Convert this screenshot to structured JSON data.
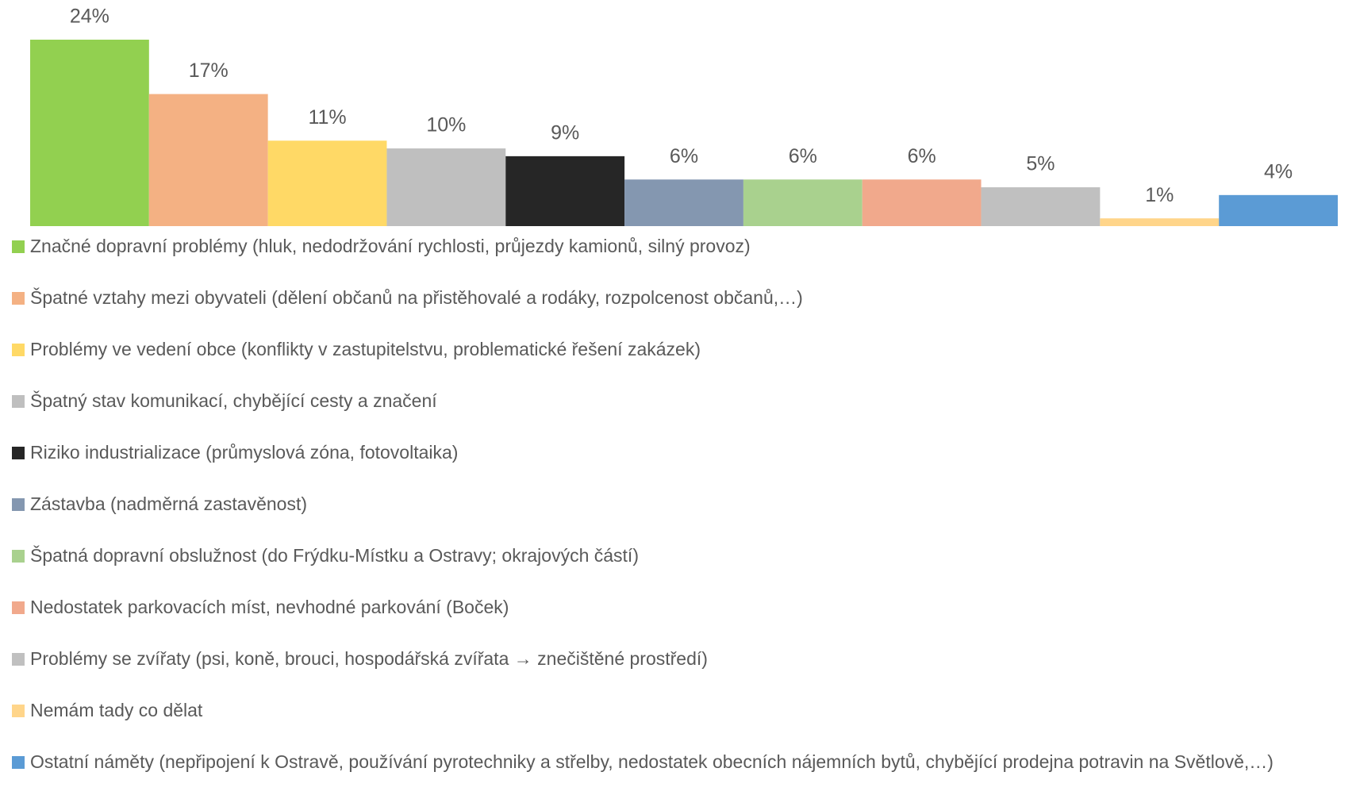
{
  "chart_data": {
    "type": "bar",
    "series": [
      {
        "name": "Značné dopravní problémy (hluk, nedodržování rychlosti, průjezdy kamionů, silný provoz)",
        "color": "#92d050",
        "values": [
          24
        ],
        "value_labels": [
          "24%"
        ]
      },
      {
        "name": "Špatné vztahy mezi obyvateli (dělení občanů na přistěhovalé a rodáky, rozpolcenost občanů,…)",
        "color": "#f4b183",
        "values": [
          17
        ],
        "value_labels": [
          "17%"
        ]
      },
      {
        "name": "Problémy ve vedení obce (konflikty v zastupitelstvu, problematické řešení zakázek)",
        "color": "#ffd966",
        "values": [
          11
        ],
        "value_labels": [
          "11%"
        ]
      },
      {
        "name": "Špatný stav komunikací, chybějící cesty a značení",
        "color": "#bfbfbf",
        "values": [
          10
        ],
        "value_labels": [
          "10%"
        ]
      },
      {
        "name": "Riziko industrializace (průmyslová zóna, fotovoltaika)",
        "color": "#262626",
        "values": [
          9
        ],
        "value_labels": [
          "9%"
        ]
      },
      {
        "name": "Zástavba (nadměrná zastavěnost)",
        "color": "#8497b0",
        "values": [
          6
        ],
        "value_labels": [
          "6%"
        ]
      },
      {
        "name": "Špatná dopravní obslužnost (do Frýdku-Místku a Ostravy; okrajových částí)",
        "color": "#a9d18e",
        "values": [
          6
        ],
        "value_labels": [
          "6%"
        ]
      },
      {
        "name": "Nedostatek parkovacích míst, nevhodné parkování (Boček)",
        "color": "#f1a98c",
        "values": [
          6
        ],
        "value_labels": [
          "6%"
        ]
      },
      {
        "name": "Problémy se zvířaty (psi, koně, brouci, hospodářská zvířata → znečištěné prostředí)",
        "color": "#c0c0c0",
        "values": [
          5
        ],
        "value_labels": [
          "5%"
        ]
      },
      {
        "name": "Nemám tady co dělat",
        "color": "#ffd58a",
        "values": [
          1
        ],
        "value_labels": [
          "1%"
        ]
      },
      {
        "name": "Ostatní náměty (nepřipojení k Ostravě, používání pyrotechniky a střelby, nedostatek obecních nájemních bytů, chybějící prodejna potravin na Světlově,…)",
        "color": "#5b9bd5",
        "values": [
          4
        ],
        "value_labels": [
          "4%"
        ]
      }
    ]
  }
}
